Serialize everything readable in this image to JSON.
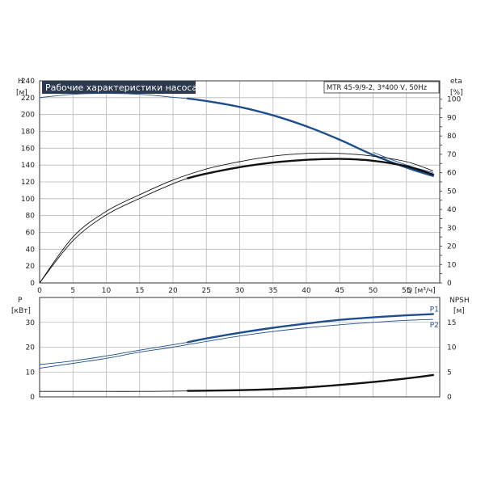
{
  "title": "Рабочие характеристики насоса",
  "model": "MTR 45-9/9-2, 3*400 V, 50Hz",
  "colors": {
    "blue": "#1f4e8c",
    "black": "#111111",
    "title_bg": "#2b3a4f",
    "grid": "#b8b8b8"
  },
  "chart_data": [
    {
      "type": "line",
      "name": "head-efficiency",
      "ylabel": "H",
      "yunit": "[м]",
      "y2label": "eta",
      "y2unit": "[%]",
      "xlabel": "Q [м³/ч]",
      "xlim": [
        0,
        60
      ],
      "ylim": [
        0,
        240
      ],
      "y2lim": [
        0,
        110
      ],
      "x_ticks": [
        0,
        5,
        10,
        15,
        20,
        25,
        30,
        35,
        40,
        45,
        50,
        55
      ],
      "y_ticks": [
        0,
        20,
        40,
        60,
        80,
        100,
        120,
        140,
        160,
        180,
        200,
        220,
        240
      ],
      "y2_ticks": [
        0,
        5,
        10,
        15,
        20,
        25,
        30,
        35,
        40,
        45,
        50,
        55,
        60,
        65,
        70,
        75,
        80,
        85,
        90,
        95,
        100
      ],
      "y2_tick_labels": [
        "0",
        "",
        "10",
        "",
        "20",
        "",
        "30",
        "",
        "40",
        "",
        "50",
        "",
        "60",
        "",
        "70",
        "",
        "80",
        "",
        "90",
        "",
        "100"
      ],
      "grid": true,
      "series": [
        {
          "role": "H",
          "axis": "y",
          "color": "#1f4e8c",
          "x": [
            0,
            5,
            10,
            15,
            20,
            22.2
          ],
          "y": [
            220,
            224,
            225,
            224,
            220.5,
            219
          ],
          "x_op": [
            22.2,
            25,
            30,
            35,
            40,
            45,
            50,
            55,
            59
          ],
          "y_op": [
            219,
            216,
            209,
            199,
            186,
            170,
            152,
            137,
            127
          ]
        },
        {
          "role": "H-alt",
          "axis": "y",
          "color": "#1f4e8c",
          "thin": true,
          "x": [
            50,
            55,
            59
          ],
          "y": [
            155,
            140,
            131
          ]
        },
        {
          "role": "eta1",
          "axis": "y2",
          "color": "#111111",
          "x": [
            0,
            5,
            10,
            15,
            20,
            22.2
          ],
          "y": [
            0,
            23,
            37,
            46,
            54,
            57
          ],
          "x_op": [
            22.2,
            25,
            30,
            35,
            40,
            45,
            50,
            55,
            59
          ],
          "y_op": [
            57,
            59.5,
            63,
            65.5,
            67,
            67.5,
            66.5,
            63.5,
            59
          ]
        },
        {
          "role": "eta2",
          "axis": "y2",
          "color": "#111111",
          "thin": true,
          "x": [
            0,
            5,
            10,
            15,
            20,
            25,
            30,
            35,
            40,
            45,
            50,
            55,
            59
          ],
          "y": [
            0,
            25,
            39,
            48,
            56,
            62,
            66,
            69,
            70.5,
            70.5,
            69,
            66,
            61
          ]
        }
      ]
    },
    {
      "type": "line",
      "name": "power-npsh",
      "ylabel": "P",
      "yunit": "[кВт]",
      "y2label": "NPSH",
      "y2unit": "[м]",
      "xlim": [
        0,
        60
      ],
      "ylim": [
        0,
        40
      ],
      "y2lim": [
        0,
        20
      ],
      "y_ticks": [
        0,
        10,
        20,
        30
      ],
      "y2_ticks": [
        0,
        5,
        10,
        15
      ],
      "grid": true,
      "series": [
        {
          "name": "P1",
          "axis": "y",
          "color": "#1f4e8c",
          "x": [
            0,
            5,
            10,
            15,
            20,
            22.2
          ],
          "y": [
            13,
            14.5,
            16.5,
            18.8,
            21,
            22
          ],
          "x_op": [
            22.2,
            25,
            30,
            35,
            40,
            45,
            50,
            55,
            59
          ],
          "y_op": [
            22,
            23.5,
            25.8,
            27.8,
            29.5,
            31,
            32,
            32.8,
            33.3
          ]
        },
        {
          "name": "P2",
          "axis": "y",
          "color": "#1f4e8c",
          "thin": true,
          "x": [
            0,
            5,
            10,
            15,
            20,
            25,
            30,
            35,
            40,
            45,
            50,
            55,
            59
          ],
          "y": [
            11.5,
            13.5,
            15.5,
            18,
            20,
            22.3,
            24.5,
            26.3,
            27.8,
            29,
            30,
            30.8,
            31.2
          ]
        },
        {
          "role": "NPSH",
          "axis": "y2",
          "color": "#111111",
          "x": [
            0,
            5,
            10,
            15,
            20,
            22.2
          ],
          "y": [
            1.1,
            1.1,
            1.1,
            1.1,
            1.15,
            1.2
          ],
          "x_op": [
            22.2,
            25,
            30,
            35,
            40,
            45,
            50,
            55,
            59
          ],
          "y_op": [
            1.2,
            1.25,
            1.35,
            1.55,
            1.9,
            2.4,
            3.0,
            3.7,
            4.4
          ]
        }
      ]
    }
  ]
}
